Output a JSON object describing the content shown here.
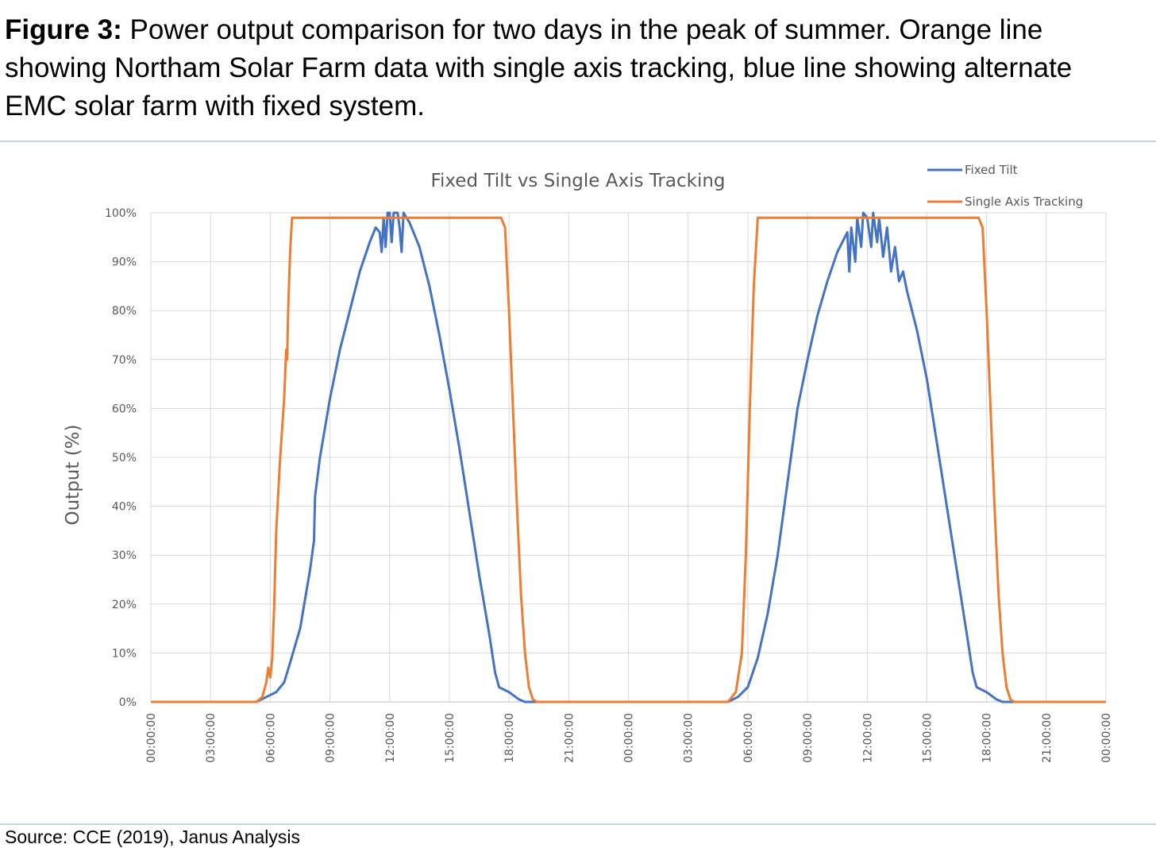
{
  "figure": {
    "label": "Figure 3:",
    "caption": "Power output comparison for two days in the peak of summer. Orange line showing Northam Solar Farm data with single axis tracking, blue line showing alternate EMC solar farm with fixed system."
  },
  "source": "Source: CCE (2019), Janus Analysis",
  "chart_data": {
    "type": "line",
    "title": "Fixed Tilt vs Single Axis Tracking",
    "xlabel": "",
    "ylabel": "Output (%)",
    "x_range_hours": [
      0,
      48
    ],
    "ylim": [
      0,
      100
    ],
    "y_ticks": [
      "0%",
      "10%",
      "20%",
      "30%",
      "40%",
      "50%",
      "60%",
      "70%",
      "80%",
      "90%",
      "100%"
    ],
    "x_ticks": [
      "00:00:00",
      "03:00:00",
      "06:00:00",
      "09:00:00",
      "12:00:00",
      "15:00:00",
      "18:00:00",
      "21:00:00",
      "00:00:00",
      "03:00:00",
      "06:00:00",
      "09:00:00",
      "12:00:00",
      "15:00:00",
      "18:00:00",
      "21:00:00",
      "00:00:00"
    ],
    "grid": true,
    "legend_position": "top-right",
    "series": [
      {
        "name": "Fixed Tilt",
        "color": "#4472c4",
        "points": [
          [
            0,
            0
          ],
          [
            5.3,
            0
          ],
          [
            5.8,
            1
          ],
          [
            6.3,
            2
          ],
          [
            6.7,
            4
          ],
          [
            7.0,
            8
          ],
          [
            7.5,
            15
          ],
          [
            8.0,
            27
          ],
          [
            8.2,
            33
          ],
          [
            8.25,
            42
          ],
          [
            8.5,
            50
          ],
          [
            9.0,
            62
          ],
          [
            9.5,
            72
          ],
          [
            10.0,
            80
          ],
          [
            10.5,
            88
          ],
          [
            11.0,
            94
          ],
          [
            11.3,
            97
          ],
          [
            11.5,
            96
          ],
          [
            11.6,
            92
          ],
          [
            11.7,
            99
          ],
          [
            11.8,
            93
          ],
          [
            11.9,
            100
          ],
          [
            12.0,
            100
          ],
          [
            12.1,
            94
          ],
          [
            12.2,
            100
          ],
          [
            12.4,
            100
          ],
          [
            12.5,
            97
          ],
          [
            12.6,
            92
          ],
          [
            12.7,
            100
          ],
          [
            13.0,
            98
          ],
          [
            13.5,
            93
          ],
          [
            14.0,
            85
          ],
          [
            14.5,
            75
          ],
          [
            15.0,
            64
          ],
          [
            15.5,
            52
          ],
          [
            16.0,
            39
          ],
          [
            16.5,
            26
          ],
          [
            17.0,
            14
          ],
          [
            17.3,
            6
          ],
          [
            17.5,
            3
          ],
          [
            18.0,
            2
          ],
          [
            18.5,
            0.5
          ],
          [
            18.8,
            0
          ],
          [
            29.0,
            0
          ],
          [
            29.5,
            1
          ],
          [
            30.0,
            3
          ],
          [
            30.5,
            9
          ],
          [
            31.0,
            18
          ],
          [
            31.5,
            30
          ],
          [
            32.0,
            45
          ],
          [
            32.5,
            60
          ],
          [
            33.0,
            70
          ],
          [
            33.5,
            79
          ],
          [
            34.0,
            86
          ],
          [
            34.5,
            92
          ],
          [
            35.0,
            96
          ],
          [
            35.1,
            88
          ],
          [
            35.2,
            97
          ],
          [
            35.4,
            90
          ],
          [
            35.5,
            99
          ],
          [
            35.7,
            93
          ],
          [
            35.8,
            100
          ],
          [
            36.0,
            99
          ],
          [
            36.2,
            93
          ],
          [
            36.3,
            100
          ],
          [
            36.5,
            94
          ],
          [
            36.6,
            99
          ],
          [
            36.8,
            91
          ],
          [
            37.0,
            97
          ],
          [
            37.2,
            88
          ],
          [
            37.4,
            93
          ],
          [
            37.6,
            86
          ],
          [
            37.8,
            88
          ],
          [
            38.0,
            84
          ],
          [
            38.5,
            76
          ],
          [
            39.0,
            66
          ],
          [
            39.5,
            53
          ],
          [
            40.0,
            40
          ],
          [
            40.5,
            27
          ],
          [
            41.0,
            14
          ],
          [
            41.3,
            6
          ],
          [
            41.5,
            3
          ],
          [
            42.0,
            2
          ],
          [
            42.5,
            0.5
          ],
          [
            42.8,
            0
          ],
          [
            48,
            0
          ]
        ]
      },
      {
        "name": "Single Axis Tracking",
        "color": "#ed7d31",
        "points": [
          [
            0,
            0
          ],
          [
            5.3,
            0
          ],
          [
            5.6,
            1
          ],
          [
            5.8,
            4
          ],
          [
            5.9,
            7
          ],
          [
            6.0,
            5
          ],
          [
            6.1,
            9
          ],
          [
            6.2,
            20
          ],
          [
            6.3,
            35
          ],
          [
            6.5,
            50
          ],
          [
            6.7,
            62
          ],
          [
            6.8,
            72
          ],
          [
            6.85,
            70
          ],
          [
            6.9,
            80
          ],
          [
            7.0,
            92
          ],
          [
            7.1,
            99
          ],
          [
            7.2,
            99
          ],
          [
            10,
            99
          ],
          [
            12,
            99
          ],
          [
            14,
            99
          ],
          [
            16,
            99
          ],
          [
            17.6,
            99
          ],
          [
            17.8,
            97
          ],
          [
            18.0,
            80
          ],
          [
            18.2,
            60
          ],
          [
            18.4,
            40
          ],
          [
            18.6,
            22
          ],
          [
            18.8,
            10
          ],
          [
            19.0,
            3
          ],
          [
            19.2,
            0.5
          ],
          [
            19.4,
            0
          ],
          [
            29.0,
            0
          ],
          [
            29.4,
            2
          ],
          [
            29.7,
            10
          ],
          [
            29.9,
            30
          ],
          [
            30.1,
            60
          ],
          [
            30.3,
            85
          ],
          [
            30.5,
            99
          ],
          [
            33,
            99
          ],
          [
            36,
            99
          ],
          [
            39,
            99
          ],
          [
            41.6,
            99
          ],
          [
            41.8,
            97
          ],
          [
            42.0,
            80
          ],
          [
            42.2,
            60
          ],
          [
            42.4,
            40
          ],
          [
            42.6,
            22
          ],
          [
            42.8,
            10
          ],
          [
            43.0,
            3
          ],
          [
            43.2,
            0.5
          ],
          [
            43.4,
            0
          ],
          [
            48,
            0
          ]
        ]
      }
    ]
  }
}
